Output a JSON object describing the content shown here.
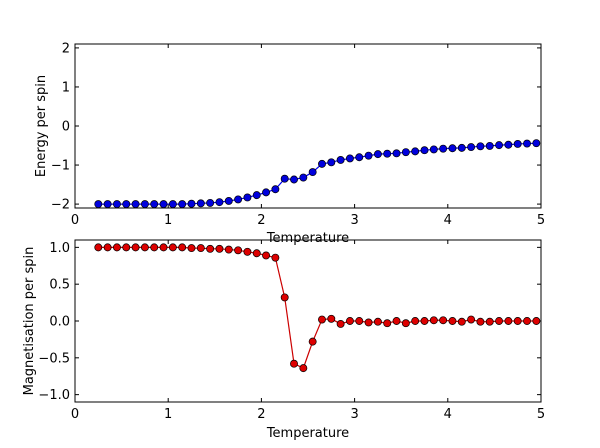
{
  "chart_data": [
    {
      "type": "line",
      "xlabel": "Temperature",
      "ylabel": "Energy per spin",
      "xlim": [
        0,
        5
      ],
      "ylim": [
        -2.1,
        2.1
      ],
      "xticks": [
        "0",
        "1",
        "2",
        "3",
        "4",
        "5"
      ],
      "yticks": [
        "−2",
        "−1",
        "0",
        "1",
        "2"
      ],
      "ytick_values": [
        -2,
        -1,
        0,
        1,
        2
      ],
      "xtick_values": [
        0,
        1,
        2,
        3,
        4,
        5
      ],
      "grid": false,
      "color": "#0000ee",
      "marker_color": "#0000dd",
      "x": [
        0.25,
        0.35,
        0.45,
        0.55,
        0.65,
        0.75,
        0.85,
        0.95,
        1.05,
        1.15,
        1.25,
        1.35,
        1.45,
        1.55,
        1.65,
        1.75,
        1.85,
        1.95,
        2.05,
        2.15,
        2.25,
        2.35,
        2.45,
        2.55,
        2.65,
        2.75,
        2.85,
        2.95,
        3.05,
        3.15,
        3.25,
        3.35,
        3.45,
        3.55,
        3.65,
        3.75,
        3.85,
        3.95,
        4.05,
        4.15,
        4.25,
        4.35,
        4.45,
        4.55,
        4.65,
        4.75,
        4.85,
        4.95
      ],
      "y": [
        -2.0,
        -2.0,
        -2.0,
        -2.0,
        -2.0,
        -2.0,
        -2.0,
        -2.0,
        -2.0,
        -2.0,
        -1.99,
        -1.98,
        -1.97,
        -1.95,
        -1.92,
        -1.88,
        -1.83,
        -1.77,
        -1.7,
        -1.62,
        -1.35,
        -1.37,
        -1.32,
        -1.18,
        -0.97,
        -0.93,
        -0.87,
        -0.83,
        -0.8,
        -0.76,
        -0.72,
        -0.71,
        -0.7,
        -0.67,
        -0.65,
        -0.62,
        -0.6,
        -0.58,
        -0.57,
        -0.56,
        -0.54,
        -0.52,
        -0.51,
        -0.49,
        -0.48,
        -0.46,
        -0.45,
        -0.44
      ]
    },
    {
      "type": "line",
      "xlabel": "Temperature",
      "ylabel": "Magnetisation per spin",
      "xlim": [
        0,
        5
      ],
      "ylim": [
        -1.1,
        1.1
      ],
      "xticks": [
        "0",
        "1",
        "2",
        "3",
        "4",
        "5"
      ],
      "yticks": [
        "1.0",
        "0.5",
        "0.0",
        "−0.5",
        "−1.0"
      ],
      "ytick_values": [
        1.0,
        0.5,
        0.0,
        -0.5,
        -1.0
      ],
      "xtick_values": [
        0,
        1,
        2,
        3,
        4,
        5
      ],
      "grid": false,
      "color": "#cc0000",
      "marker_color": "#dd0000",
      "x": [
        0.25,
        0.35,
        0.45,
        0.55,
        0.65,
        0.75,
        0.85,
        0.95,
        1.05,
        1.15,
        1.25,
        1.35,
        1.45,
        1.55,
        1.65,
        1.75,
        1.85,
        1.95,
        2.05,
        2.15,
        2.25,
        2.35,
        2.45,
        2.55,
        2.65,
        2.75,
        2.85,
        2.95,
        3.05,
        3.15,
        3.25,
        3.35,
        3.45,
        3.55,
        3.65,
        3.75,
        3.85,
        3.95,
        4.05,
        4.15,
        4.25,
        4.35,
        4.45,
        4.55,
        4.65,
        4.75,
        4.85,
        4.95
      ],
      "y": [
        1.0,
        1.0,
        1.0,
        1.0,
        1.0,
        1.0,
        1.0,
        1.0,
        1.0,
        1.0,
        0.99,
        0.99,
        0.98,
        0.98,
        0.97,
        0.96,
        0.94,
        0.92,
        0.89,
        0.86,
        0.32,
        -0.58,
        -0.64,
        -0.28,
        0.02,
        0.03,
        -0.04,
        0.0,
        0.0,
        -0.02,
        -0.01,
        -0.03,
        0.0,
        -0.03,
        0.0,
        0.0,
        0.01,
        0.01,
        0.0,
        -0.01,
        0.02,
        -0.01,
        -0.01,
        0.0,
        0.0,
        0.0,
        0.0,
        0.0
      ]
    }
  ]
}
